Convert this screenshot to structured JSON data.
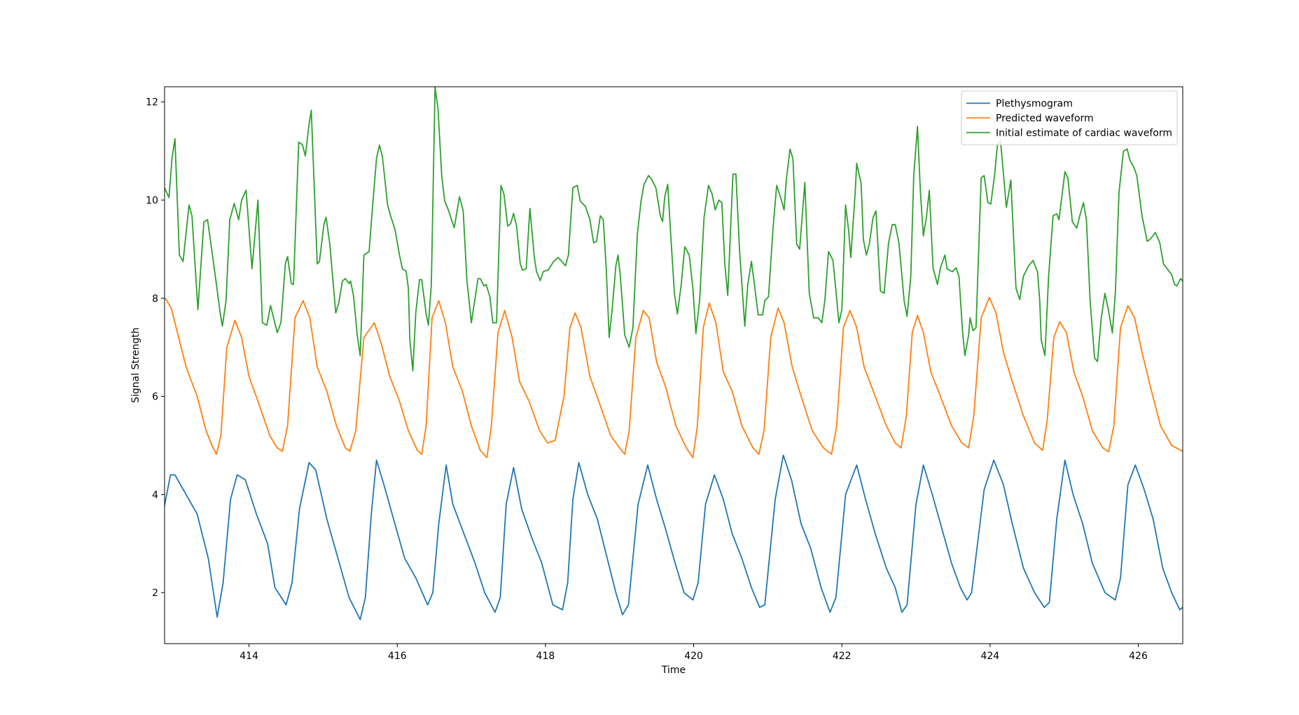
{
  "chart_data": {
    "type": "line",
    "xlabel": "Time",
    "ylabel": "Signal Strength",
    "xlim": [
      412.86,
      426.6
    ],
    "ylim": [
      0.96,
      12.31
    ],
    "xticks": [
      414,
      416,
      418,
      420,
      422,
      424,
      426
    ],
    "yticks": [
      2,
      4,
      6,
      8,
      10,
      12
    ],
    "grid": false,
    "legend": "upper right",
    "series": [
      {
        "name": "Plethysmogram",
        "color": "#1f77b4",
        "x": [
          412.85,
          412.94,
          413.0,
          413.15,
          413.3,
          413.45,
          413.57,
          413.65,
          413.75,
          413.84,
          413.95,
          414.1,
          414.25,
          414.35,
          414.5,
          414.58,
          414.68,
          414.81,
          414.9,
          415.05,
          415.2,
          415.35,
          415.5,
          415.57,
          415.65,
          415.72,
          415.82,
          415.95,
          416.1,
          416.25,
          416.41,
          416.48,
          416.56,
          416.66,
          416.75,
          416.9,
          417.05,
          417.18,
          417.32,
          417.39,
          417.47,
          417.57,
          417.68,
          417.82,
          417.95,
          418.1,
          418.23,
          418.3,
          418.37,
          418.45,
          418.57,
          418.7,
          418.85,
          418.95,
          419.04,
          419.12,
          419.25,
          419.38,
          419.5,
          419.62,
          419.75,
          419.87,
          419.99,
          420.06,
          420.16,
          420.28,
          420.4,
          420.52,
          420.65,
          420.78,
          420.89,
          420.96,
          421.1,
          421.21,
          421.32,
          421.45,
          421.58,
          421.72,
          421.84,
          421.92,
          422.05,
          422.2,
          422.32,
          422.45,
          422.6,
          422.72,
          422.81,
          422.88,
          423.0,
          423.1,
          423.22,
          423.35,
          423.48,
          423.6,
          423.69,
          423.75,
          423.92,
          424.05,
          424.18,
          424.3,
          424.45,
          424.6,
          424.73,
          424.8,
          424.9,
          425.01,
          425.12,
          425.25,
          425.38,
          425.55,
          425.69,
          425.76,
          425.86,
          425.96,
          426.08,
          426.2,
          426.33,
          426.45,
          426.56,
          426.6
        ],
        "values": [
          3.7,
          4.4,
          4.4,
          4.0,
          3.6,
          2.7,
          1.5,
          2.2,
          3.9,
          4.4,
          4.3,
          3.6,
          3.0,
          2.1,
          1.75,
          2.2,
          3.7,
          4.65,
          4.5,
          3.5,
          2.7,
          1.9,
          1.45,
          1.9,
          3.6,
          4.7,
          4.2,
          3.5,
          2.7,
          2.3,
          1.75,
          2.0,
          3.4,
          4.6,
          3.8,
          3.2,
          2.6,
          2.0,
          1.6,
          1.9,
          3.8,
          4.55,
          3.7,
          3.1,
          2.6,
          1.75,
          1.65,
          2.2,
          3.9,
          4.65,
          4.0,
          3.5,
          2.6,
          2.0,
          1.55,
          1.75,
          3.8,
          4.6,
          3.9,
          3.3,
          2.6,
          2.0,
          1.85,
          2.2,
          3.8,
          4.4,
          3.9,
          3.2,
          2.7,
          2.1,
          1.7,
          1.75,
          3.9,
          4.8,
          4.3,
          3.4,
          2.9,
          2.1,
          1.6,
          1.9,
          4.0,
          4.6,
          3.9,
          3.2,
          2.5,
          2.1,
          1.6,
          1.75,
          3.8,
          4.6,
          4.0,
          3.3,
          2.6,
          2.1,
          1.85,
          2.0,
          4.1,
          4.7,
          4.2,
          3.4,
          2.5,
          2.0,
          1.7,
          1.8,
          3.5,
          4.7,
          4.0,
          3.4,
          2.6,
          2.0,
          1.85,
          2.3,
          4.2,
          4.6,
          4.1,
          3.5,
          2.5,
          2.0,
          1.65,
          1.7
        ]
      },
      {
        "name": "Predicted waveform",
        "color": "#ff7f0e",
        "x": [
          412.87,
          412.95,
          413.05,
          413.15,
          413.3,
          413.42,
          413.5,
          413.56,
          413.62,
          413.7,
          413.81,
          413.9,
          414.0,
          414.12,
          414.28,
          414.38,
          414.45,
          414.52,
          414.62,
          414.73,
          414.82,
          414.92,
          415.05,
          415.18,
          415.3,
          415.36,
          415.44,
          415.55,
          415.69,
          415.78,
          415.9,
          416.03,
          416.15,
          416.27,
          416.33,
          416.39,
          416.47,
          416.56,
          416.65,
          416.75,
          416.88,
          417.0,
          417.12,
          417.21,
          417.27,
          417.36,
          417.45,
          417.55,
          417.65,
          417.78,
          417.92,
          418.03,
          418.13,
          418.25,
          418.33,
          418.4,
          418.48,
          418.6,
          418.72,
          418.88,
          419.0,
          419.07,
          419.13,
          419.22,
          419.32,
          419.4,
          419.5,
          419.62,
          419.76,
          419.9,
          419.99,
          420.05,
          420.13,
          420.21,
          420.3,
          420.4,
          420.52,
          420.65,
          420.8,
          420.88,
          420.95,
          421.04,
          421.14,
          421.22,
          421.33,
          421.45,
          421.6,
          421.75,
          421.86,
          421.93,
          422.02,
          422.11,
          422.2,
          422.3,
          422.45,
          422.6,
          422.72,
          422.8,
          422.87,
          422.95,
          423.02,
          423.1,
          423.2,
          423.33,
          423.48,
          423.62,
          423.71,
          423.78,
          423.88,
          423.99,
          424.08,
          424.18,
          424.3,
          424.45,
          424.6,
          424.71,
          424.77,
          424.86,
          424.94,
          425.03,
          425.13,
          425.25,
          425.38,
          425.52,
          425.6,
          425.67,
          425.76,
          425.86,
          425.95,
          426.05,
          426.18,
          426.3,
          426.45,
          426.6
        ],
        "values": [
          8.0,
          7.8,
          7.2,
          6.6,
          6.0,
          5.3,
          5.0,
          4.82,
          5.2,
          7.0,
          7.55,
          7.2,
          6.4,
          5.9,
          5.2,
          4.95,
          4.88,
          5.4,
          7.6,
          7.95,
          7.6,
          6.6,
          6.1,
          5.4,
          4.95,
          4.88,
          5.3,
          7.2,
          7.5,
          7.1,
          6.4,
          5.9,
          5.3,
          4.9,
          4.82,
          5.4,
          7.6,
          7.95,
          7.5,
          6.6,
          6.1,
          5.4,
          4.9,
          4.75,
          5.4,
          7.3,
          7.75,
          7.2,
          6.3,
          5.9,
          5.3,
          5.05,
          5.1,
          6.0,
          7.4,
          7.7,
          7.4,
          6.4,
          5.9,
          5.2,
          4.95,
          4.82,
          5.3,
          7.2,
          7.75,
          7.6,
          6.7,
          6.2,
          5.4,
          4.95,
          4.75,
          5.4,
          7.4,
          7.9,
          7.5,
          6.5,
          6.1,
          5.4,
          4.95,
          4.82,
          5.3,
          7.2,
          7.8,
          7.5,
          6.6,
          6.0,
          5.3,
          4.95,
          4.82,
          5.4,
          7.4,
          7.75,
          7.4,
          6.6,
          6.0,
          5.4,
          5.05,
          4.95,
          5.6,
          7.3,
          7.65,
          7.3,
          6.5,
          6.0,
          5.4,
          5.05,
          4.95,
          5.6,
          7.6,
          8.02,
          7.7,
          6.9,
          6.3,
          5.6,
          5.05,
          4.9,
          5.5,
          7.2,
          7.52,
          7.3,
          6.5,
          6.0,
          5.3,
          4.95,
          4.87,
          5.4,
          7.4,
          7.85,
          7.6,
          6.9,
          6.1,
          5.4,
          5.0,
          4.88
        ]
      },
      {
        "name": "Initial estimate of cardiac waveform",
        "color": "#2ca02c",
        "x": [
          412.86,
          412.92,
          412.96,
          413.0,
          413.06,
          413.11,
          413.19,
          413.23,
          413.31,
          413.39,
          413.44,
          413.5,
          413.56,
          413.61,
          413.64,
          413.69,
          413.74,
          413.8,
          413.86,
          413.9,
          413.96,
          414.04,
          414.12,
          414.18,
          414.24,
          414.29,
          414.38,
          414.43,
          414.49,
          414.52,
          414.57,
          414.6,
          414.67,
          414.72,
          414.76,
          414.81,
          414.84,
          414.92,
          414.95,
          415.01,
          415.04,
          415.09,
          415.17,
          415.21,
          415.26,
          415.3,
          415.35,
          415.37,
          415.41,
          415.46,
          415.5,
          415.55,
          415.62,
          415.65,
          415.72,
          415.76,
          415.8,
          415.87,
          415.91,
          415.97,
          416.03,
          416.07,
          416.12,
          416.15,
          416.17,
          416.21,
          416.25,
          416.3,
          416.33,
          416.39,
          416.42,
          416.46,
          416.51,
          416.55,
          416.6,
          416.64,
          416.69,
          416.74,
          416.77,
          416.81,
          416.84,
          416.89,
          416.94,
          417.0,
          417.09,
          417.12,
          417.17,
          417.2,
          417.25,
          417.29,
          417.34,
          417.4,
          417.44,
          417.49,
          417.53,
          417.57,
          417.61,
          417.66,
          417.69,
          417.74,
          417.79,
          417.85,
          417.88,
          417.93,
          417.97,
          418.04,
          418.11,
          418.17,
          418.22,
          418.27,
          418.31,
          418.37,
          418.43,
          418.47,
          418.54,
          418.6,
          418.65,
          418.69,
          418.74,
          418.78,
          418.82,
          418.86,
          418.9,
          418.95,
          418.98,
          419.01,
          419.07,
          419.13,
          419.18,
          419.24,
          419.29,
          419.33,
          419.39,
          419.43,
          419.49,
          419.55,
          419.58,
          419.61,
          419.65,
          419.69,
          419.74,
          419.78,
          419.83,
          419.88,
          419.94,
          419.99,
          420.03,
          420.08,
          420.14,
          420.2,
          420.25,
          420.29,
          420.34,
          420.38,
          420.42,
          420.46,
          420.53,
          420.57,
          420.62,
          420.69,
          420.73,
          420.78,
          420.82,
          420.87,
          420.93,
          420.96,
          421.01,
          421.07,
          421.12,
          421.17,
          421.22,
          421.25,
          421.3,
          421.34,
          421.39,
          421.43,
          421.5,
          421.56,
          421.62,
          421.68,
          421.73,
          421.77,
          421.82,
          421.88,
          421.92,
          421.96,
          422.0,
          422.05,
          422.09,
          422.12,
          422.18,
          422.2,
          422.26,
          422.29,
          422.33,
          422.37,
          422.42,
          422.46,
          422.52,
          422.57,
          422.63,
          422.68,
          422.72,
          422.77,
          422.84,
          422.88,
          422.93,
          422.97,
          423.02,
          423.06,
          423.1,
          423.14,
          423.18,
          423.23,
          423.29,
          423.33,
          423.39,
          423.42,
          423.49,
          423.54,
          423.58,
          423.63,
          423.66,
          423.71,
          423.73,
          423.77,
          423.81,
          423.88,
          423.92,
          423.97,
          424.01,
          424.06,
          424.1,
          424.14,
          424.22,
          424.28,
          424.35,
          424.4,
          424.45,
          424.52,
          424.58,
          424.64,
          424.67,
          424.69,
          424.74,
          424.79,
          424.85,
          424.9,
          424.93,
          425.01,
          425.05,
          425.11,
          425.17,
          425.21,
          425.26,
          425.3,
          425.35,
          425.41,
          425.45,
          425.5,
          425.55,
          425.6,
          425.65,
          425.69,
          425.74,
          425.8,
          425.85,
          425.89,
          425.94,
          425.98,
          426.05,
          426.12,
          426.16,
          426.23,
          426.29,
          426.34,
          426.4,
          426.45,
          426.49,
          426.52,
          426.57,
          426.6
        ],
        "values": [
          10.25,
          10.05,
          10.85,
          11.25,
          8.88,
          8.75,
          9.9,
          9.68,
          7.77,
          9.55,
          9.6,
          8.95,
          8.28,
          7.7,
          7.43,
          7.95,
          9.6,
          9.93,
          9.6,
          10.0,
          10.2,
          8.6,
          10.0,
          7.5,
          7.45,
          7.85,
          7.3,
          7.5,
          8.7,
          8.85,
          8.3,
          8.28,
          11.18,
          11.13,
          10.9,
          11.55,
          11.83,
          8.7,
          8.75,
          9.5,
          9.65,
          9.1,
          7.7,
          7.9,
          8.35,
          8.4,
          8.3,
          8.35,
          8.05,
          7.25,
          6.83,
          8.88,
          8.95,
          9.55,
          10.85,
          11.12,
          10.88,
          9.9,
          9.68,
          9.4,
          8.88,
          8.6,
          8.55,
          8.2,
          7.15,
          6.52,
          7.7,
          8.38,
          8.38,
          7.68,
          7.45,
          8.28,
          12.3,
          11.86,
          10.5,
          9.98,
          9.8,
          9.56,
          9.44,
          9.8,
          10.07,
          9.78,
          8.36,
          7.5,
          8.4,
          8.4,
          8.25,
          8.28,
          8.03,
          7.5,
          7.5,
          10.3,
          10.12,
          9.47,
          9.52,
          9.73,
          9.47,
          8.7,
          8.57,
          8.6,
          9.83,
          8.83,
          8.54,
          8.36,
          8.54,
          8.58,
          8.75,
          8.83,
          8.75,
          8.66,
          8.88,
          10.25,
          10.3,
          9.98,
          9.87,
          9.6,
          9.13,
          9.16,
          9.68,
          9.6,
          8.62,
          7.2,
          7.77,
          8.66,
          8.88,
          8.45,
          7.25,
          7.0,
          7.4,
          9.3,
          9.98,
          10.32,
          10.5,
          10.43,
          10.25,
          9.68,
          9.56,
          10.07,
          10.32,
          9.3,
          8.1,
          7.68,
          8.25,
          9.05,
          8.88,
          8.2,
          7.28,
          7.95,
          9.64,
          10.3,
          10.12,
          9.8,
          10.0,
          9.95,
          8.7,
          8.06,
          10.53,
          10.53,
          8.95,
          7.43,
          8.28,
          8.75,
          8.28,
          7.66,
          7.66,
          7.95,
          8.03,
          9.4,
          10.3,
          10.07,
          9.8,
          10.41,
          11.04,
          10.84,
          9.1,
          9.0,
          10.36,
          8.1,
          7.6,
          7.6,
          7.5,
          7.95,
          8.95,
          8.77,
          8.15,
          7.5,
          7.77,
          9.9,
          9.4,
          8.83,
          10.16,
          10.75,
          10.33,
          9.2,
          8.88,
          9.1,
          9.64,
          9.78,
          8.15,
          8.1,
          9.13,
          9.5,
          9.5,
          9.13,
          7.95,
          7.63,
          8.45,
          10.5,
          11.5,
          10.16,
          9.27,
          9.64,
          10.2,
          8.62,
          8.28,
          8.62,
          8.88,
          8.6,
          8.54,
          8.62,
          8.45,
          7.29,
          6.83,
          7.25,
          7.6,
          7.34,
          7.4,
          10.45,
          10.5,
          9.95,
          9.92,
          10.5,
          11.14,
          11.22,
          9.85,
          10.41,
          8.2,
          7.97,
          8.45,
          8.66,
          8.77,
          8.54,
          7.95,
          7.15,
          6.83,
          8.45,
          9.68,
          9.72,
          9.6,
          10.58,
          10.45,
          9.56,
          9.43,
          9.68,
          9.95,
          9.6,
          7.95,
          6.78,
          6.71,
          7.6,
          8.1,
          7.73,
          7.29,
          8.1,
          10.16,
          11.0,
          11.04,
          10.8,
          10.67,
          10.5,
          9.68,
          9.16,
          9.2,
          9.34,
          9.13,
          8.7,
          8.58,
          8.48,
          8.28,
          8.25,
          8.4,
          8.35
        ]
      }
    ]
  }
}
